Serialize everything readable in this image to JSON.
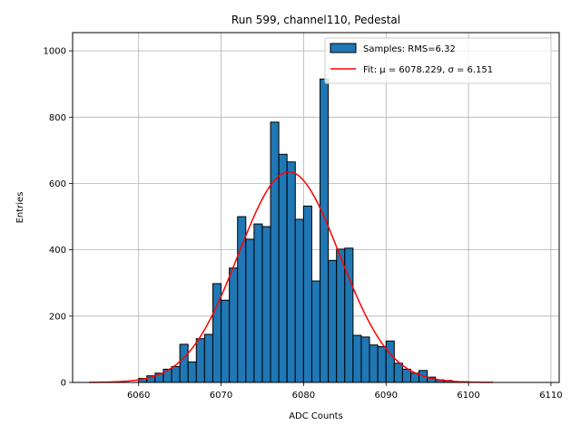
{
  "chart_data": {
    "type": "bar",
    "title": "Run 599, channel110, Pedestal",
    "xlabel": "ADC Counts",
    "ylabel": "Entries",
    "xlim": [
      6052,
      6111
    ],
    "ylim": [
      0,
      1055
    ],
    "xticks": [
      6060,
      6070,
      6080,
      6090,
      6100,
      6110
    ],
    "yticks": [
      0,
      200,
      400,
      600,
      800,
      1000
    ],
    "grid": true,
    "legend_position": "top-right",
    "histogram": {
      "name": "Samples: RMS=6.32",
      "color": "#1f77b4",
      "bin_width": 1,
      "bin_starts": [
        6060,
        6061,
        6062,
        6063,
        6064,
        6065,
        6066,
        6067,
        6068,
        6069,
        6070,
        6071,
        6072,
        6073,
        6074,
        6075,
        6076,
        6077,
        6078,
        6079,
        6080,
        6081,
        6082,
        6083,
        6084,
        6085,
        6086,
        6087,
        6088,
        6089,
        6090,
        6091,
        6092,
        6093,
        6094,
        6095,
        6096,
        6097,
        6098,
        6099
      ],
      "values": [
        12,
        20,
        28,
        40,
        48,
        115,
        62,
        132,
        145,
        298,
        248,
        345,
        500,
        432,
        478,
        470,
        785,
        688,
        665,
        492,
        532,
        306,
        915,
        368,
        402,
        405,
        142,
        137,
        113,
        108,
        125,
        58,
        40,
        28,
        36,
        16,
        8,
        6,
        2,
        2
      ]
    },
    "fit": {
      "name": "Fit: μ = 6078.229, σ = 6.151",
      "color": "#ff0000",
      "mu": 6078.229,
      "sigma": 6.151,
      "amplitude": 635,
      "x_range": [
        6054,
        6103
      ]
    }
  }
}
